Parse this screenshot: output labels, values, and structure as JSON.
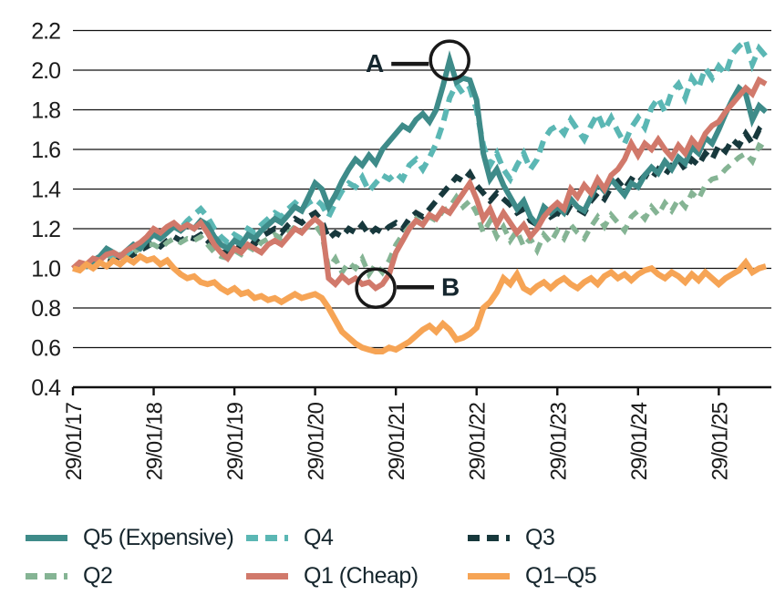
{
  "chart_data": {
    "type": "line",
    "title": "",
    "y_axis": {
      "min": 0.4,
      "max": 2.2,
      "step": 0.2,
      "tick_values": [
        0.4,
        0.6,
        0.8,
        1.0,
        1.2,
        1.4,
        1.6,
        1.8,
        2.0,
        2.2
      ],
      "tick_labels": [
        "0.4",
        "0.6",
        "0.8",
        "1.0",
        "1.2",
        "1.4",
        "1.6",
        "1.8",
        "2.0",
        "2.2"
      ],
      "grid": true
    },
    "x_axis": {
      "tick_labels": [
        "29/01/17",
        "29/01/18",
        "29/01/19",
        "29/01/20",
        "29/01/21",
        "29/01/22",
        "29/01/23",
        "29/01/24",
        "29/01/25"
      ],
      "tick_month_indices": [
        0,
        12,
        24,
        36,
        48,
        60,
        72,
        84,
        96
      ],
      "label_rotation_degrees": 90,
      "frequency": "monthly",
      "start_label": "29/01/17"
    },
    "legend": {
      "position": "bottom",
      "rows": 2,
      "columns": 3,
      "order": [
        "Q5 (Expensive)",
        "Q4",
        "Q3",
        "Q2",
        "Q1 (Cheap)",
        "Q1–Q5"
      ]
    },
    "series": [
      {
        "name": "Q5 (Expensive)",
        "color": "#3E8B89",
        "style": "solid",
        "values": [
          1.0,
          1.02,
          1.01,
          1.04,
          1.06,
          1.1,
          1.08,
          1.06,
          1.09,
          1.12,
          1.1,
          1.14,
          1.17,
          1.15,
          1.18,
          1.21,
          1.19,
          1.22,
          1.2,
          1.24,
          1.22,
          1.16,
          1.12,
          1.1,
          1.14,
          1.12,
          1.17,
          1.15,
          1.19,
          1.22,
          1.25,
          1.23,
          1.27,
          1.31,
          1.29,
          1.36,
          1.43,
          1.4,
          1.31,
          1.37,
          1.44,
          1.5,
          1.55,
          1.52,
          1.57,
          1.53,
          1.6,
          1.64,
          1.68,
          1.72,
          1.7,
          1.75,
          1.78,
          1.74,
          1.8,
          1.92,
          2.05,
          1.94,
          1.96,
          1.95,
          1.85,
          1.58,
          1.45,
          1.5,
          1.42,
          1.36,
          1.3,
          1.34,
          1.26,
          1.22,
          1.31,
          1.28,
          1.31,
          1.28,
          1.35,
          1.31,
          1.29,
          1.36,
          1.43,
          1.39,
          1.45,
          1.41,
          1.37,
          1.43,
          1.41,
          1.47,
          1.51,
          1.48,
          1.54,
          1.5,
          1.56,
          1.53,
          1.61,
          1.58,
          1.66,
          1.63,
          1.7,
          1.78,
          1.85,
          1.91,
          1.88,
          1.75,
          1.82,
          1.79
        ]
      },
      {
        "name": "Q4",
        "color": "#5BB7B4",
        "style": "dashed",
        "values": [
          1.0,
          1.01,
          1.03,
          1.02,
          1.05,
          1.08,
          1.06,
          1.08,
          1.07,
          1.1,
          1.12,
          1.15,
          1.18,
          1.16,
          1.19,
          1.22,
          1.2,
          1.24,
          1.27,
          1.3,
          1.26,
          1.2,
          1.16,
          1.13,
          1.17,
          1.15,
          1.2,
          1.18,
          1.22,
          1.25,
          1.28,
          1.26,
          1.3,
          1.33,
          1.3,
          1.33,
          1.35,
          1.32,
          1.26,
          1.33,
          1.39,
          1.43,
          1.41,
          1.46,
          1.39,
          1.43,
          1.47,
          1.45,
          1.48,
          1.45,
          1.52,
          1.55,
          1.5,
          1.56,
          1.63,
          1.73,
          1.86,
          1.93,
          1.88,
          1.91,
          1.8,
          1.62,
          1.52,
          1.58,
          1.5,
          1.45,
          1.52,
          1.58,
          1.5,
          1.55,
          1.65,
          1.7,
          1.72,
          1.68,
          1.75,
          1.7,
          1.65,
          1.72,
          1.78,
          1.7,
          1.76,
          1.69,
          1.63,
          1.71,
          1.76,
          1.71,
          1.81,
          1.86,
          1.79,
          1.89,
          1.93,
          1.86,
          1.96,
          1.91,
          2.01,
          1.96,
          2.02,
          1.98,
          2.08,
          2.12,
          2.15,
          2.03,
          2.11,
          2.07
        ]
      },
      {
        "name": "Q3",
        "color": "#17383C",
        "style": "dashed",
        "values": [
          1.0,
          1.01,
          1.02,
          1.01,
          1.03,
          1.05,
          1.04,
          1.06,
          1.05,
          1.07,
          1.09,
          1.11,
          1.13,
          1.11,
          1.14,
          1.16,
          1.14,
          1.16,
          1.15,
          1.17,
          1.14,
          1.1,
          1.08,
          1.08,
          1.12,
          1.1,
          1.14,
          1.12,
          1.16,
          1.18,
          1.2,
          1.18,
          1.22,
          1.25,
          1.23,
          1.26,
          1.28,
          1.24,
          1.15,
          1.18,
          1.16,
          1.2,
          1.18,
          1.22,
          1.17,
          1.2,
          1.18,
          1.21,
          1.23,
          1.2,
          1.25,
          1.28,
          1.26,
          1.3,
          1.34,
          1.38,
          1.42,
          1.46,
          1.44,
          1.48,
          1.42,
          1.38,
          1.34,
          1.38,
          1.35,
          1.32,
          1.28,
          1.3,
          1.24,
          1.22,
          1.3,
          1.26,
          1.28,
          1.26,
          1.32,
          1.3,
          1.28,
          1.34,
          1.38,
          1.35,
          1.41,
          1.44,
          1.4,
          1.45,
          1.43,
          1.47,
          1.45,
          1.5,
          1.47,
          1.52,
          1.55,
          1.5,
          1.55,
          1.52,
          1.58,
          1.55,
          1.62,
          1.59,
          1.65,
          1.62,
          1.68,
          1.63,
          1.7,
          1.67
        ]
      },
      {
        "name": "Q2",
        "color": "#85B494",
        "style": "dashed",
        "values": [
          1.0,
          1.02,
          1.01,
          1.03,
          1.05,
          1.07,
          1.05,
          1.07,
          1.06,
          1.08,
          1.1,
          1.12,
          1.12,
          1.1,
          1.13,
          1.15,
          1.13,
          1.15,
          1.14,
          1.16,
          1.12,
          1.08,
          1.06,
          1.05,
          1.09,
          1.07,
          1.11,
          1.09,
          1.13,
          1.15,
          1.17,
          1.15,
          1.18,
          1.21,
          1.19,
          1.21,
          1.22,
          1.17,
          1.0,
          1.05,
          0.98,
          1.03,
          1.0,
          1.05,
          0.97,
          1.02,
          0.98,
          1.04,
          1.12,
          1.17,
          1.21,
          1.25,
          1.22,
          1.26,
          1.24,
          1.29,
          1.31,
          1.36,
          1.31,
          1.34,
          1.28,
          1.18,
          1.24,
          1.16,
          1.21,
          1.14,
          1.19,
          1.11,
          1.15,
          1.09,
          1.17,
          1.13,
          1.19,
          1.15,
          1.22,
          1.18,
          1.15,
          1.21,
          1.26,
          1.21,
          1.27,
          1.23,
          1.19,
          1.26,
          1.29,
          1.25,
          1.31,
          1.27,
          1.33,
          1.29,
          1.35,
          1.31,
          1.38,
          1.35,
          1.42,
          1.45,
          1.46,
          1.5,
          1.53,
          1.56,
          1.58,
          1.54,
          1.62,
          1.6
        ]
      },
      {
        "name": "Q1 (Cheap)",
        "color": "#D1796B",
        "style": "solid",
        "values": [
          1.0,
          1.03,
          1.02,
          1.05,
          1.04,
          1.07,
          1.08,
          1.06,
          1.09,
          1.11,
          1.13,
          1.16,
          1.2,
          1.18,
          1.21,
          1.23,
          1.2,
          1.22,
          1.2,
          1.23,
          1.18,
          1.12,
          1.08,
          1.05,
          1.1,
          1.08,
          1.12,
          1.1,
          1.08,
          1.12,
          1.14,
          1.12,
          1.16,
          1.2,
          1.18,
          1.22,
          1.25,
          1.22,
          0.95,
          0.92,
          0.96,
          0.93,
          0.95,
          0.92,
          0.93,
          0.9,
          0.92,
          0.97,
          1.08,
          1.14,
          1.2,
          1.24,
          1.22,
          1.27,
          1.25,
          1.3,
          1.28,
          1.33,
          1.38,
          1.43,
          1.35,
          1.25,
          1.3,
          1.22,
          1.28,
          1.23,
          1.18,
          1.22,
          1.16,
          1.2,
          1.26,
          1.3,
          1.33,
          1.3,
          1.4,
          1.36,
          1.42,
          1.38,
          1.45,
          1.4,
          1.47,
          1.5,
          1.55,
          1.63,
          1.57,
          1.63,
          1.6,
          1.65,
          1.6,
          1.56,
          1.62,
          1.58,
          1.65,
          1.61,
          1.68,
          1.72,
          1.74,
          1.79,
          1.83,
          1.87,
          1.91,
          1.88,
          1.95,
          1.93
        ]
      },
      {
        "name": "Q1–Q5",
        "color": "#F6A455",
        "style": "solid",
        "values": [
          1.0,
          0.99,
          1.02,
          1.0,
          1.03,
          1.01,
          1.04,
          1.02,
          1.05,
          1.03,
          1.06,
          1.04,
          1.05,
          1.02,
          1.04,
          1.0,
          0.97,
          0.95,
          0.96,
          0.93,
          0.92,
          0.93,
          0.9,
          0.88,
          0.9,
          0.87,
          0.88,
          0.85,
          0.86,
          0.84,
          0.85,
          0.83,
          0.85,
          0.87,
          0.85,
          0.86,
          0.87,
          0.85,
          0.8,
          0.74,
          0.68,
          0.65,
          0.62,
          0.6,
          0.59,
          0.58,
          0.58,
          0.6,
          0.59,
          0.61,
          0.63,
          0.66,
          0.69,
          0.71,
          0.68,
          0.72,
          0.69,
          0.64,
          0.65,
          0.67,
          0.7,
          0.8,
          0.83,
          0.88,
          0.95,
          0.92,
          0.97,
          0.9,
          0.88,
          0.91,
          0.93,
          0.9,
          0.93,
          0.95,
          0.92,
          0.9,
          0.93,
          0.95,
          0.92,
          0.96,
          0.98,
          0.95,
          0.97,
          0.94,
          0.97,
          0.99,
          1.0,
          0.97,
          0.95,
          0.98,
          0.96,
          0.93,
          0.97,
          0.94,
          0.98,
          0.95,
          0.92,
          0.95,
          0.97,
          0.99,
          1.03,
          0.98,
          1.0,
          1.01
        ]
      }
    ],
    "annotations": [
      {
        "label": "A",
        "series_index": 0,
        "month_index": 56,
        "value": 2.05,
        "side": "left"
      },
      {
        "label": "B",
        "series_index": 4,
        "month_index": 45,
        "value": 0.9,
        "side": "right"
      }
    ]
  }
}
